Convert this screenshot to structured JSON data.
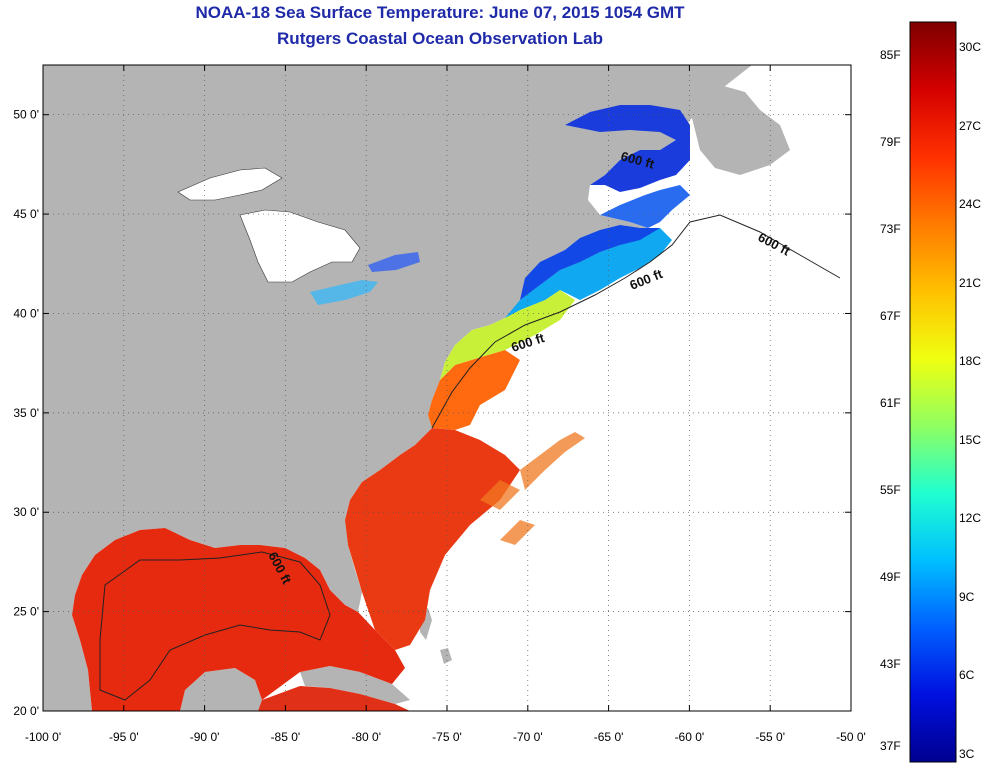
{
  "title": "NOAA-18 Sea Surface Temperature:  June 07, 2015 1054 GMT",
  "subtitle": "Rutgers Coastal Ocean Observation Lab",
  "map": {
    "lon_range": [
      -100,
      -50
    ],
    "lat_range": [
      20,
      52.5
    ],
    "x_ticks": [
      {
        "value": -100,
        "label": "-100 0'"
      },
      {
        "value": -95,
        "label": "-95 0'"
      },
      {
        "value": -90,
        "label": "-90 0'"
      },
      {
        "value": -85,
        "label": "-85 0'"
      },
      {
        "value": -80,
        "label": "-80 0'"
      },
      {
        "value": -75,
        "label": "-75 0'"
      },
      {
        "value": -70,
        "label": "-70 0'"
      },
      {
        "value": -65,
        "label": "-65 0'"
      },
      {
        "value": -60,
        "label": "-60 0'"
      },
      {
        "value": -55,
        "label": "-55 0'"
      },
      {
        "value": -50,
        "label": "-50 0'"
      }
    ],
    "y_ticks": [
      {
        "value": 20,
        "label": "20 0'"
      },
      {
        "value": 25,
        "label": "25 0'"
      },
      {
        "value": 30,
        "label": "30 0'"
      },
      {
        "value": 35,
        "label": "35 0'"
      },
      {
        "value": 40,
        "label": "40 0'"
      },
      {
        "value": 45,
        "label": "45 0'"
      },
      {
        "value": 50,
        "label": "50 0'"
      }
    ],
    "contour_labels": [
      "600 ft",
      "600 ft",
      "600 ft",
      "600 ft",
      "600 ft"
    ],
    "colors": {
      "land": "#b4b4b4",
      "nodata": "#ffffff"
    }
  },
  "colorbar": {
    "fahrenheit_labels": [
      "85F",
      "79F",
      "73F",
      "67F",
      "61F",
      "55F",
      "49F",
      "43F",
      "37F"
    ],
    "celsius_labels": [
      "30C",
      "27C",
      "24C",
      "21C",
      "18C",
      "15C",
      "12C",
      "9C",
      "6C",
      "3C"
    ],
    "stops": [
      "#7f0000",
      "#d40000",
      "#ff3000",
      "#ff7a00",
      "#ffc000",
      "#f0ff10",
      "#90ff60",
      "#20ffd0",
      "#00c0ff",
      "#0060ff",
      "#0010e0",
      "#00008f"
    ]
  }
}
